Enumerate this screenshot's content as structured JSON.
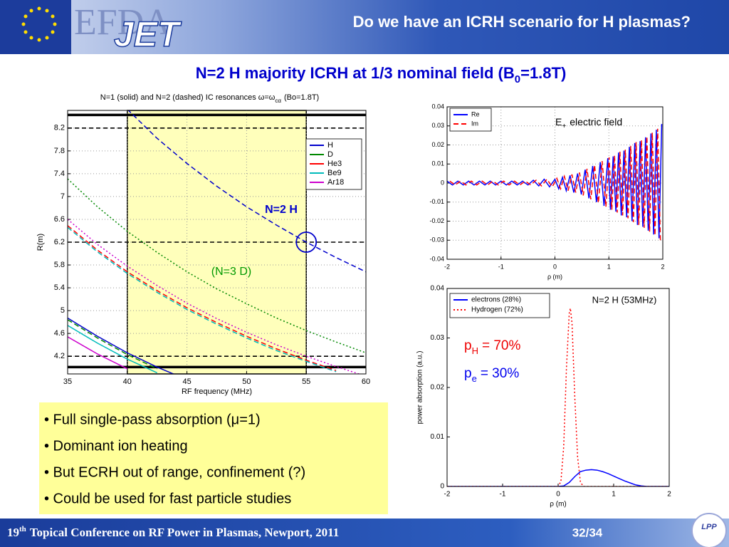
{
  "logo": {
    "efda": "EFDA",
    "jet": "JET"
  },
  "header": {
    "title": "Do we have an ICRH scenario for H plasmas?"
  },
  "subtitle": [
    "N=2 H majority ICRH at 1/3 nominal field (B",
    "0",
    "=1.8T)"
  ],
  "chart_data": [
    {
      "type": "line",
      "title": [
        "N=1 (solid) and N=2 (dashed) IC resonances ω=ω",
        "cα",
        "(Bo=1.8T)"
      ],
      "xlabel": "RF frequency (MHz)",
      "ylabel": "R(m)",
      "x": [
        35,
        37.5,
        40,
        42.5,
        45,
        47.5,
        50,
        52.5,
        55,
        57.5,
        60
      ],
      "xlim": [
        35,
        60
      ],
      "xticks": [
        35,
        40,
        45,
        50,
        55,
        60
      ],
      "ylim": [
        3.89,
        8.51
      ],
      "yticks": [
        4.2,
        4.6,
        5,
        5.4,
        5.8,
        6.2,
        6.6,
        7,
        7.4,
        7.8,
        8.2
      ],
      "grid": true,
      "legend": "upper right",
      "band": [
        40,
        55
      ],
      "hlines": [
        {
          "y": 8.43,
          "style": "solid"
        },
        {
          "y": 4.01,
          "style": "solid"
        },
        {
          "y": 8.2,
          "style": "dashed"
        },
        {
          "y": 6.2,
          "style": "dashed"
        },
        {
          "y": 4.2,
          "style": "dashed"
        }
      ],
      "highlight": {
        "x": 55,
        "y": 6.2
      },
      "series": [
        {
          "name": "H",
          "color": "#0000cc",
          "style": "dashed",
          "values": [
            null,
            null,
            8.53,
            8.02,
            7.58,
            7.18,
            6.82,
            6.5,
            6.2,
            5.93,
            5.68
          ]
        },
        {
          "name": "H",
          "color": "#0000cc",
          "style": "solid",
          "values": [
            4.87,
            4.55,
            4.26,
            4.01,
            3.79,
            null,
            null,
            null,
            null,
            null,
            null
          ]
        },
        {
          "name": "D",
          "color": "#008800",
          "style": "dotted",
          "values": [
            7.31,
            6.82,
            6.39,
            6.02,
            5.68,
            5.38,
            5.12,
            4.87,
            4.65,
            4.45,
            4.26
          ]
        },
        {
          "name": "D",
          "color": "#008800",
          "style": "dashed",
          "values": [
            4.84,
            4.52,
            4.23,
            3.98,
            null,
            null,
            null,
            null,
            null,
            null,
            null
          ]
        },
        {
          "name": "He3",
          "color": "#ff0000",
          "style": "dashed",
          "values": [
            6.49,
            6.06,
            5.68,
            5.35,
            5.05,
            4.79,
            4.55,
            4.33,
            4.13,
            3.95,
            null
          ]
        },
        {
          "name": "Be9",
          "color": "#00bbbb",
          "style": "dashed",
          "values": [
            6.46,
            6.03,
            5.65,
            5.32,
            5.02,
            4.76,
            4.52,
            4.3,
            4.11,
            3.93,
            null
          ]
        },
        {
          "name": "Be9",
          "color": "#00bbbb",
          "style": "solid",
          "values": [
            4.74,
            4.43,
            4.15,
            3.91,
            null,
            null,
            null,
            null,
            null,
            null,
            null
          ]
        },
        {
          "name": "Ar18",
          "color": "#cc00cc",
          "style": "dotted",
          "values": [
            6.6,
            6.16,
            5.78,
            5.44,
            5.13,
            4.86,
            4.62,
            4.4,
            4.2,
            4.02,
            3.85
          ]
        },
        {
          "name": "Ar18",
          "color": "#cc00cc",
          "style": "solid",
          "values": [
            4.54,
            4.24,
            3.98,
            null,
            null,
            null,
            null,
            null,
            null,
            null,
            null
          ]
        }
      ],
      "annotations": [
        {
          "text": "N=2 H",
          "color": "#0000cc"
        },
        {
          "text": "(N=3 D)",
          "color": "#009900"
        }
      ]
    },
    {
      "type": "line",
      "xlabel": "ρ (m)",
      "xlim": [
        -2,
        2
      ],
      "xticks": [
        -2,
        -1,
        0,
        1,
        2
      ],
      "ylim": [
        -0.04,
        0.04
      ],
      "yticks": [
        -0.04,
        -0.03,
        -0.02,
        -0.01,
        0,
        0.01,
        0.02,
        0.03,
        0.04
      ],
      "grid": true,
      "legend": "upper left",
      "series": [
        {
          "name": "Re",
          "color": "#0000ff",
          "style": "solid",
          "x": [
            -2,
            -1.9,
            -1.8,
            -1.7,
            -1.6,
            -1.5,
            -1.4,
            -1.3,
            -1.2,
            -1.1,
            -1,
            -0.9,
            -0.8,
            -0.7,
            -0.6,
            -0.5,
            -0.4,
            -0.3,
            -0.2,
            -0.1,
            0,
            0.07,
            0.14,
            0.21,
            0.28,
            0.35,
            0.42,
            0.49,
            0.56,
            0.63,
            0.7,
            0.77,
            0.84,
            0.91,
            0.98,
            1.03,
            1.08,
            1.13,
            1.18,
            1.23,
            1.28,
            1.33,
            1.38,
            1.43,
            1.48,
            1.53,
            1.58,
            1.63,
            1.68,
            1.73,
            1.78,
            1.83,
            1.88,
            1.93,
            1.98
          ],
          "values": [
            0.001,
            -0.001,
            0.001,
            -0.001,
            0.001,
            -0.001,
            0.001,
            -0.001,
            0.001,
            -0.001,
            0.001,
            -0.001,
            0.001,
            -0.001,
            0.001,
            -0.001,
            0.0015,
            -0.0015,
            0.002,
            -0.002,
            0.002,
            -0.003,
            0.003,
            -0.004,
            0.004,
            -0.005,
            0.005,
            -0.006,
            0.007,
            -0.008,
            0.009,
            -0.01,
            0.011,
            -0.012,
            0.013,
            -0.014,
            0.014,
            -0.015,
            0.016,
            -0.017,
            0.017,
            -0.018,
            0.019,
            -0.02,
            0.021,
            -0.022,
            0.022,
            -0.023,
            0.024,
            -0.025,
            0.026,
            -0.027,
            0.028,
            -0.029,
            0.031
          ]
        },
        {
          "name": "Im",
          "color": "#ff0000",
          "style": "dashed",
          "x": [
            -1.95,
            -1.85,
            -1.75,
            -1.65,
            -1.55,
            -1.45,
            -1.35,
            -1.25,
            -1.15,
            -1.05,
            -0.95,
            -0.85,
            -0.75,
            -0.65,
            -0.55,
            -0.45,
            -0.35,
            -0.25,
            -0.15,
            -0.05,
            0.035,
            0.105,
            0.175,
            0.245,
            0.315,
            0.385,
            0.455,
            0.525,
            0.595,
            0.665,
            0.735,
            0.805,
            0.875,
            0.945,
            1.005,
            1.055,
            1.105,
            1.155,
            1.205,
            1.255,
            1.305,
            1.355,
            1.405,
            1.455,
            1.505,
            1.555,
            1.605,
            1.655,
            1.705,
            1.755,
            1.805,
            1.855,
            1.905,
            1.955
          ],
          "values": [
            0.001,
            -0.001,
            0.001,
            -0.001,
            0.001,
            -0.001,
            0.001,
            -0.001,
            0.001,
            -0.001,
            0.001,
            -0.001,
            0.001,
            -0.001,
            0.001,
            -0.001,
            0.0015,
            -0.0015,
            0.002,
            -0.002,
            0.0025,
            -0.003,
            0.0035,
            -0.004,
            0.0045,
            -0.005,
            0.0055,
            -0.0065,
            0.0075,
            -0.0085,
            0.0095,
            -0.0105,
            0.0115,
            -0.0125,
            0.0135,
            -0.014,
            0.0145,
            -0.0155,
            0.0165,
            -0.017,
            0.0175,
            -0.0185,
            0.0195,
            -0.0205,
            0.0215,
            -0.022,
            0.0225,
            -0.0235,
            0.0245,
            -0.0255,
            0.0265,
            -0.0275,
            0.0285,
            -0.03
          ]
        }
      ],
      "annotations": [
        {
          "parts": [
            "E",
            "+",
            "electric field"
          ],
          "color": "#000000"
        }
      ]
    },
    {
      "type": "line",
      "xlabel": "ρ (m)",
      "ylabel": "power absorption (a.u.)",
      "xlim": [
        -2,
        2
      ],
      "xticks": [
        -2,
        -1,
        0,
        1,
        2
      ],
      "ylim": [
        0,
        0.04
      ],
      "yticks": [
        0,
        0.01,
        0.02,
        0.03,
        0.04
      ],
      "grid": false,
      "legend": "upper left",
      "series": [
        {
          "name": "electrons (28%)",
          "color": "#0000ff",
          "style": "solid",
          "x": [
            -2,
            0,
            0.1,
            0.2,
            0.3,
            0.4,
            0.5,
            0.6,
            0.7,
            0.8,
            0.9,
            1,
            1.1,
            1.2,
            1.3,
            1.4,
            1.5,
            1.6,
            2
          ],
          "values": [
            0,
            0,
            0.0001,
            0.0008,
            0.002,
            0.003,
            0.0033,
            0.0034,
            0.0033,
            0.003,
            0.0026,
            0.0021,
            0.0016,
            0.0011,
            0.0007,
            0.0003,
            0.0001,
            0,
            0
          ]
        },
        {
          "name": "Hydrogen (72%)",
          "color": "#ff0000",
          "style": "dotted",
          "x": [
            -2,
            0,
            0.05,
            0.1,
            0.15,
            0.2,
            0.22,
            0.25,
            0.3,
            0.35,
            0.4,
            0.45,
            2
          ],
          "values": [
            0,
            0,
            0.001,
            0.008,
            0.024,
            0.035,
            0.036,
            0.033,
            0.018,
            0.006,
            0.001,
            0,
            0
          ]
        }
      ],
      "annotations": [
        {
          "text": "N=2 H (53MHz)",
          "color": "#000000"
        },
        {
          "parts": [
            "p",
            "H",
            "= 70%"
          ],
          "color": "#ee0000"
        },
        {
          "parts": [
            "p",
            "e",
            "= 30%"
          ],
          "color": "#0000ee"
        }
      ]
    }
  ],
  "bullets": [
    "• Full single-pass absorption (μ=1)",
    "• Dominant ion heating",
    "• But ECRH out of range, confinement (?)",
    "• Could be used for fast particle studies"
  ],
  "footer": {
    "conference": [
      "19",
      "th",
      "Topical Conference on RF Power in Plasmas, Newport, 2011"
    ],
    "page": "32/34",
    "lpp": "LPP"
  }
}
